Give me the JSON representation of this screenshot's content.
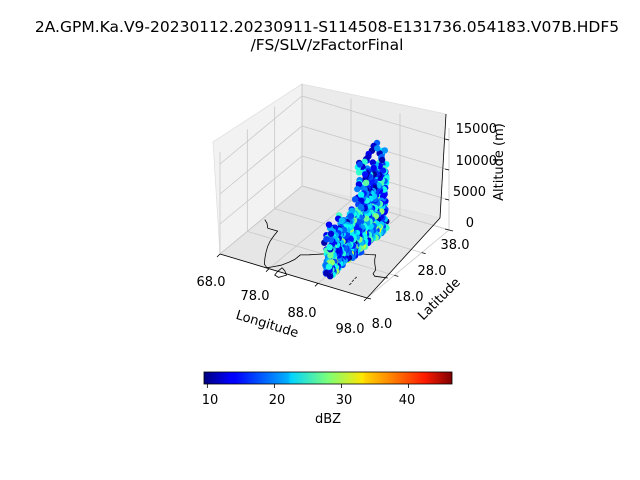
{
  "chart_data": {
    "type": "scatter",
    "projection": "3d",
    "title": "2A.GPM.Ka.V9-20230112.20230911-S114508-E131736.054183.V07B.HDF5",
    "subtitle": "/FS/SLV/zFactorFinal",
    "xlabel": "Longitude",
    "ylabel": "Latitude",
    "zlabel": "Altitude (m)",
    "xlim": [
      68,
      98
    ],
    "ylim": [
      8,
      38
    ],
    "zlim": [
      0,
      17000
    ],
    "x_ticks": [
      "68.0",
      "78.0",
      "88.0",
      "98.0"
    ],
    "y_ticks": [
      "8.0",
      "18.0",
      "28.0",
      "38.0"
    ],
    "z_ticks": [
      "0",
      "5000",
      "10000",
      "15000"
    ],
    "grid": true,
    "colormap": "jet",
    "colorbar": {
      "label": "dBZ",
      "range": [
        9.5,
        46.5
      ],
      "ticks": [
        "10",
        "20",
        "30",
        "40"
      ],
      "placement": "bottom"
    },
    "swath": {
      "longitude": 88.5,
      "lat_range": [
        10.5,
        31.5
      ],
      "alt_range": [
        300,
        16000
      ],
      "dbz_range": [
        10,
        35
      ]
    },
    "coastline": "Indian subcontinent outline"
  }
}
